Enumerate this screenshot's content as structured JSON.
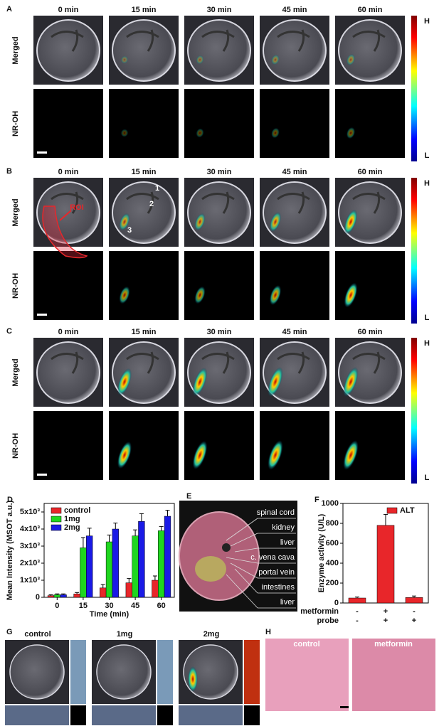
{
  "figure": {
    "panels": [
      {
        "label": "A",
        "times": [
          "0 min",
          "15 min",
          "30 min",
          "45 min",
          "60 min"
        ],
        "rows": [
          "Merged",
          "NR-OH"
        ],
        "colorbar": {
          "high": "H",
          "low": "L"
        }
      },
      {
        "label": "B",
        "times": [
          "0 min",
          "15 min",
          "30 min",
          "45 min",
          "60 min"
        ],
        "rows": [
          "Merged",
          "NR-OH"
        ],
        "colorbar": {
          "high": "H",
          "low": "L"
        },
        "annotations": [
          "ROI",
          "1",
          "2",
          "3"
        ]
      },
      {
        "label": "C",
        "times": [
          "0 min",
          "15 min",
          "30 min",
          "45 min",
          "60 min"
        ],
        "rows": [
          "Merged",
          "NR-OH"
        ],
        "colorbar": {
          "high": "H",
          "low": "L"
        }
      }
    ],
    "panel_e": {
      "label": "E",
      "organs": [
        "spinal cord",
        "kidney",
        "liver",
        "c. vena cava",
        "portal vein",
        "intestines",
        "liver"
      ]
    },
    "panel_g": {
      "label": "G",
      "groups": [
        "control",
        "1mg",
        "2mg"
      ]
    },
    "panel_h": {
      "label": "H",
      "groups": [
        "control",
        "metformin"
      ]
    }
  },
  "chart_data": [
    {
      "label": "D",
      "type": "bar",
      "xlabel": "Time (min)",
      "ylabel": "Mean Intensity (MSOT a.u.)",
      "categories": [
        "0",
        "15",
        "30",
        "45",
        "60"
      ],
      "series": [
        {
          "name": "control",
          "color": "#e8262a",
          "values": [
            100,
            200,
            550,
            850,
            1000
          ],
          "errors": [
            50,
            80,
            200,
            250,
            250
          ]
        },
        {
          "name": "1mg",
          "color": "#1fd61f",
          "values": [
            150,
            2900,
            3250,
            3600,
            3900
          ],
          "errors": [
            50,
            600,
            400,
            350,
            250
          ]
        },
        {
          "name": "2mg",
          "color": "#1a1ae6",
          "values": [
            150,
            3600,
            4000,
            4450,
            4750
          ],
          "errors": [
            50,
            450,
            350,
            450,
            350
          ]
        }
      ],
      "ylim": [
        0,
        5500
      ],
      "yticks": [
        0,
        {
          "value": 1000,
          "label": "1x10³"
        },
        {
          "value": 2000,
          "label": "2x10³"
        },
        {
          "value": 3000,
          "label": "3x10³"
        },
        {
          "value": 4000,
          "label": "4x10³"
        },
        {
          "value": 5000,
          "label": "5x10³"
        }
      ],
      "legend": "upper left"
    },
    {
      "label": "F",
      "type": "bar",
      "ylabel": "Enzyme activity (U/L)",
      "series": [
        {
          "name": "ALT",
          "color": "#e8262a",
          "values": [
            50,
            780,
            55
          ],
          "errors": [
            10,
            110,
            15
          ]
        }
      ],
      "conditions": {
        "rows": [
          "metformin",
          "probe"
        ],
        "signs": [
          [
            "-",
            "+",
            "-"
          ],
          [
            "-",
            "+",
            "+"
          ]
        ]
      },
      "ylim": [
        0,
        1000
      ],
      "yticks": [
        0,
        200,
        400,
        600,
        800,
        1000
      ],
      "legend": "upper right"
    }
  ]
}
